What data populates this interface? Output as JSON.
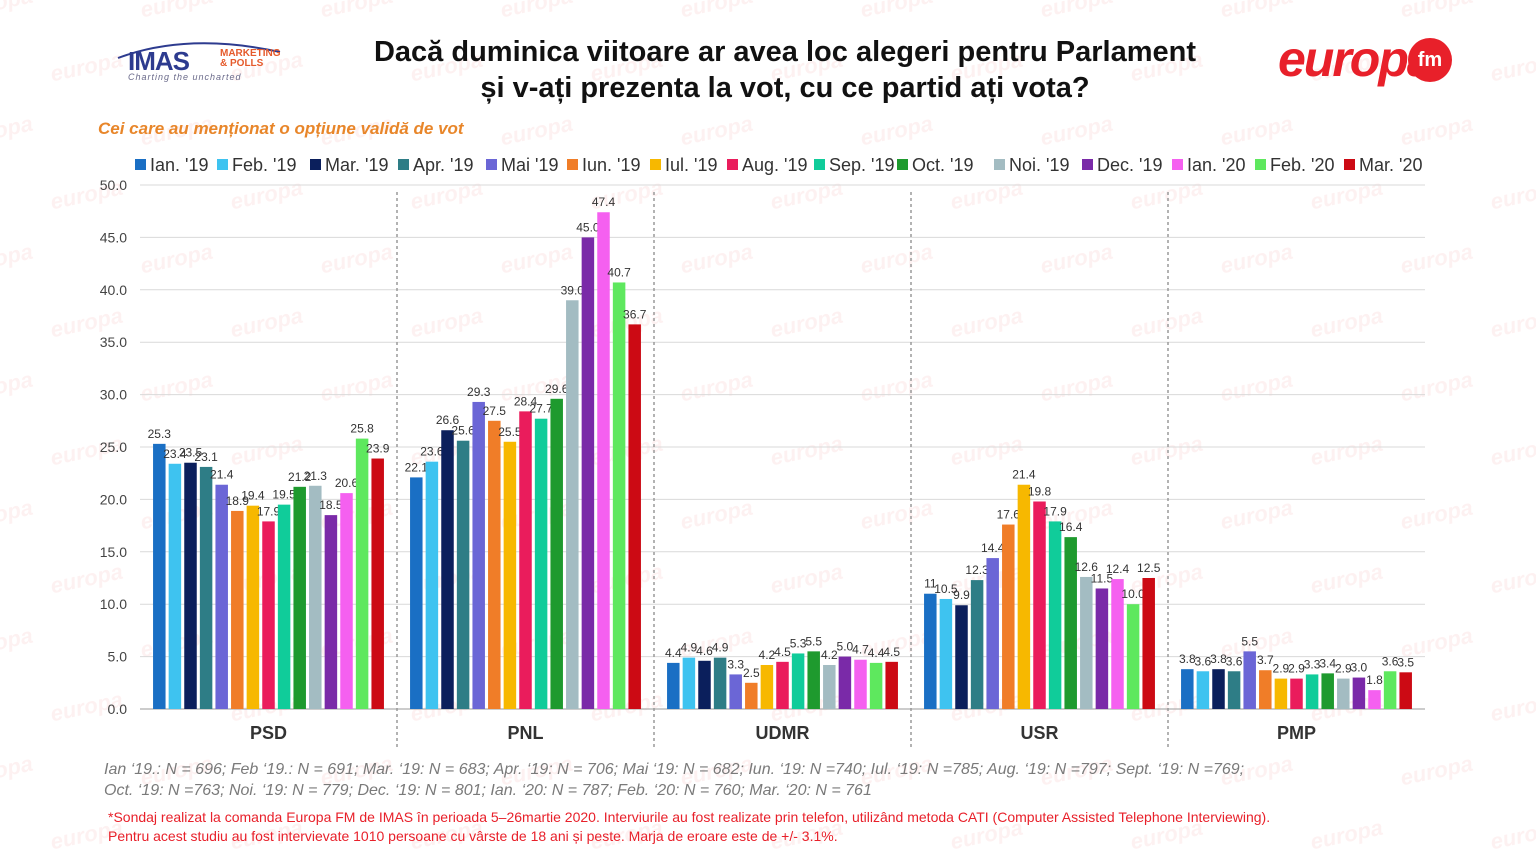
{
  "header": {
    "imas_logo": "IMAS",
    "imas_logo_sub1": "MARKETING",
    "imas_logo_sub2": "& POLLS",
    "imas_tagline": "Charting the uncharted",
    "title_line1": "Dacă duminica viitoare ar avea loc alegeri pentru Parlament",
    "title_line2": "și v-ați prezenta la vot, cu ce partid ați vota?",
    "europa_logo": "europa",
    "europa_fm": "fm"
  },
  "subtitle": "Cei care au menționat o opțiune validă de vot",
  "chart_data": {
    "type": "bar",
    "categories": [
      "PSD",
      "PNL",
      "UDMR",
      "USR",
      "PMP"
    ],
    "ylim": [
      0,
      50
    ],
    "yticks": [
      "0.0",
      "5.0",
      "10.0",
      "15.0",
      "20.0",
      "25.0",
      "30.0",
      "35.0",
      "40.0",
      "45.0",
      "50.0"
    ],
    "grid": true,
    "legend_position": "top",
    "series": [
      {
        "name": "Ian. '19",
        "color": "#1a6fc4",
        "values": [
          25.3,
          22.1,
          4.4,
          11.0,
          3.8
        ],
        "labels": [
          "25.3",
          "22.1",
          "4.4",
          "11",
          "3.8"
        ]
      },
      {
        "name": "Feb. '19",
        "color": "#3ec3f0",
        "values": [
          23.4,
          23.6,
          4.9,
          10.5,
          3.6
        ],
        "labels": [
          "23.4",
          "23.6",
          "4.9",
          "10.5",
          "3.6"
        ]
      },
      {
        "name": "Mar. '19",
        "color": "#0b1f5c",
        "values": [
          23.5,
          26.6,
          4.6,
          9.9,
          3.8
        ],
        "labels": [
          "23.5",
          "26.6",
          "4.6",
          "9.9",
          "3.8"
        ]
      },
      {
        "name": "Apr. '19",
        "color": "#2e7d86",
        "values": [
          23.1,
          25.6,
          4.9,
          12.3,
          3.6
        ],
        "labels": [
          "23.1",
          "25.6",
          "4.9",
          "12.3",
          "3.6"
        ]
      },
      {
        "name": "Mai '19",
        "color": "#6b66d6",
        "values": [
          21.4,
          29.3,
          3.3,
          14.4,
          5.5
        ],
        "labels": [
          "21.4",
          "29.3",
          "3.3",
          "14.4",
          "5.5"
        ]
      },
      {
        "name": "Iun. '19",
        "color": "#f07d28",
        "values": [
          18.9,
          27.5,
          2.5,
          17.6,
          3.7
        ],
        "labels": [
          "18.9",
          "27.5",
          "2.5",
          "17.6",
          "3.7"
        ]
      },
      {
        "name": "Iul. '19",
        "color": "#f7b800",
        "values": [
          19.4,
          25.5,
          4.2,
          21.4,
          2.9
        ],
        "labels": [
          "19.4",
          "25.5",
          "4.2",
          "21.4",
          "2.9"
        ]
      },
      {
        "name": "Aug. '19",
        "color": "#ea1c5c",
        "values": [
          17.9,
          28.4,
          4.5,
          19.8,
          2.9
        ],
        "labels": [
          "17.9",
          "28.4",
          "4.5",
          "19.8",
          "2.9"
        ]
      },
      {
        "name": "Sep. '19",
        "color": "#10cc9a",
        "values": [
          19.5,
          27.7,
          5.3,
          17.9,
          3.3
        ],
        "labels": [
          "19.5",
          "27.7",
          "5.3",
          "17.9",
          "3.3"
        ]
      },
      {
        "name": "Oct. '19",
        "color": "#1e9a2e",
        "values": [
          21.2,
          29.6,
          5.5,
          16.4,
          3.4
        ],
        "labels": [
          "21.2",
          "29.6",
          "5.5",
          "16.4",
          "3.4"
        ]
      },
      {
        "name": "Noi. '19",
        "color": "#a3bcc2",
        "values": [
          21.3,
          39.0,
          4.2,
          12.6,
          2.9
        ],
        "labels": [
          "21.3",
          "39.0",
          "4.2",
          "12.6",
          "2.9"
        ]
      },
      {
        "name": "Dec. '19",
        "color": "#7a2aa8",
        "values": [
          18.5,
          45.0,
          5.0,
          11.5,
          3.0
        ],
        "labels": [
          "18.5",
          "45.0",
          "5.0",
          "11.5",
          "3.0"
        ]
      },
      {
        "name": "Ian. '20",
        "color": "#f560f0",
        "values": [
          20.6,
          47.4,
          4.7,
          12.4,
          1.8
        ],
        "labels": [
          "20.6",
          "47.4",
          "4.7",
          "12.4",
          "1.8"
        ]
      },
      {
        "name": "Feb. '20",
        "color": "#5ee85e",
        "values": [
          25.8,
          40.7,
          4.4,
          10.0,
          3.6
        ],
        "labels": [
          "25.8",
          "40.7",
          "4.4",
          "10.0",
          "3.6"
        ]
      },
      {
        "name": "Mar. '20",
        "color": "#cc0a14",
        "values": [
          23.9,
          36.7,
          4.5,
          12.5,
          3.5
        ],
        "labels": [
          "23.9",
          "36.7",
          "4.5",
          "12.5",
          "3.5"
        ]
      }
    ]
  },
  "notes_line1": "Ian ‘19.: N = 696; Feb ‘19.: N = 691; Mar. ‘19: N = 683; Apr. ‘19: N = 706; Mai ‘19: N = 682; Iun. ‘19: N =740; Iul. ‘19: N =785; Aug. ‘19: N =797; Sept. ‘19: N =769;",
  "notes_line2": "Oct. ‘19: N =763; Noi. ‘19: N = 779; Dec. ‘19: N = 801; Ian. ‘20: N = 787; Feb. ‘20: N = 760; Mar. ‘20: N = 761",
  "footer_line1": "*Sondaj realizat la comanda Europa FM de IMAS în perioada 5–26martie 2020. Interviurile au fost realizate prin telefon, utilizând metoda CATI (Computer Assisted Telephone Interviewing).",
  "footer_line2": "Pentru acest studiu au fost intervievate 1010 persoane cu vârste de 18 ani și peste. Marja de eroare este de +/- 3.1%.",
  "watermark_text": "europa"
}
